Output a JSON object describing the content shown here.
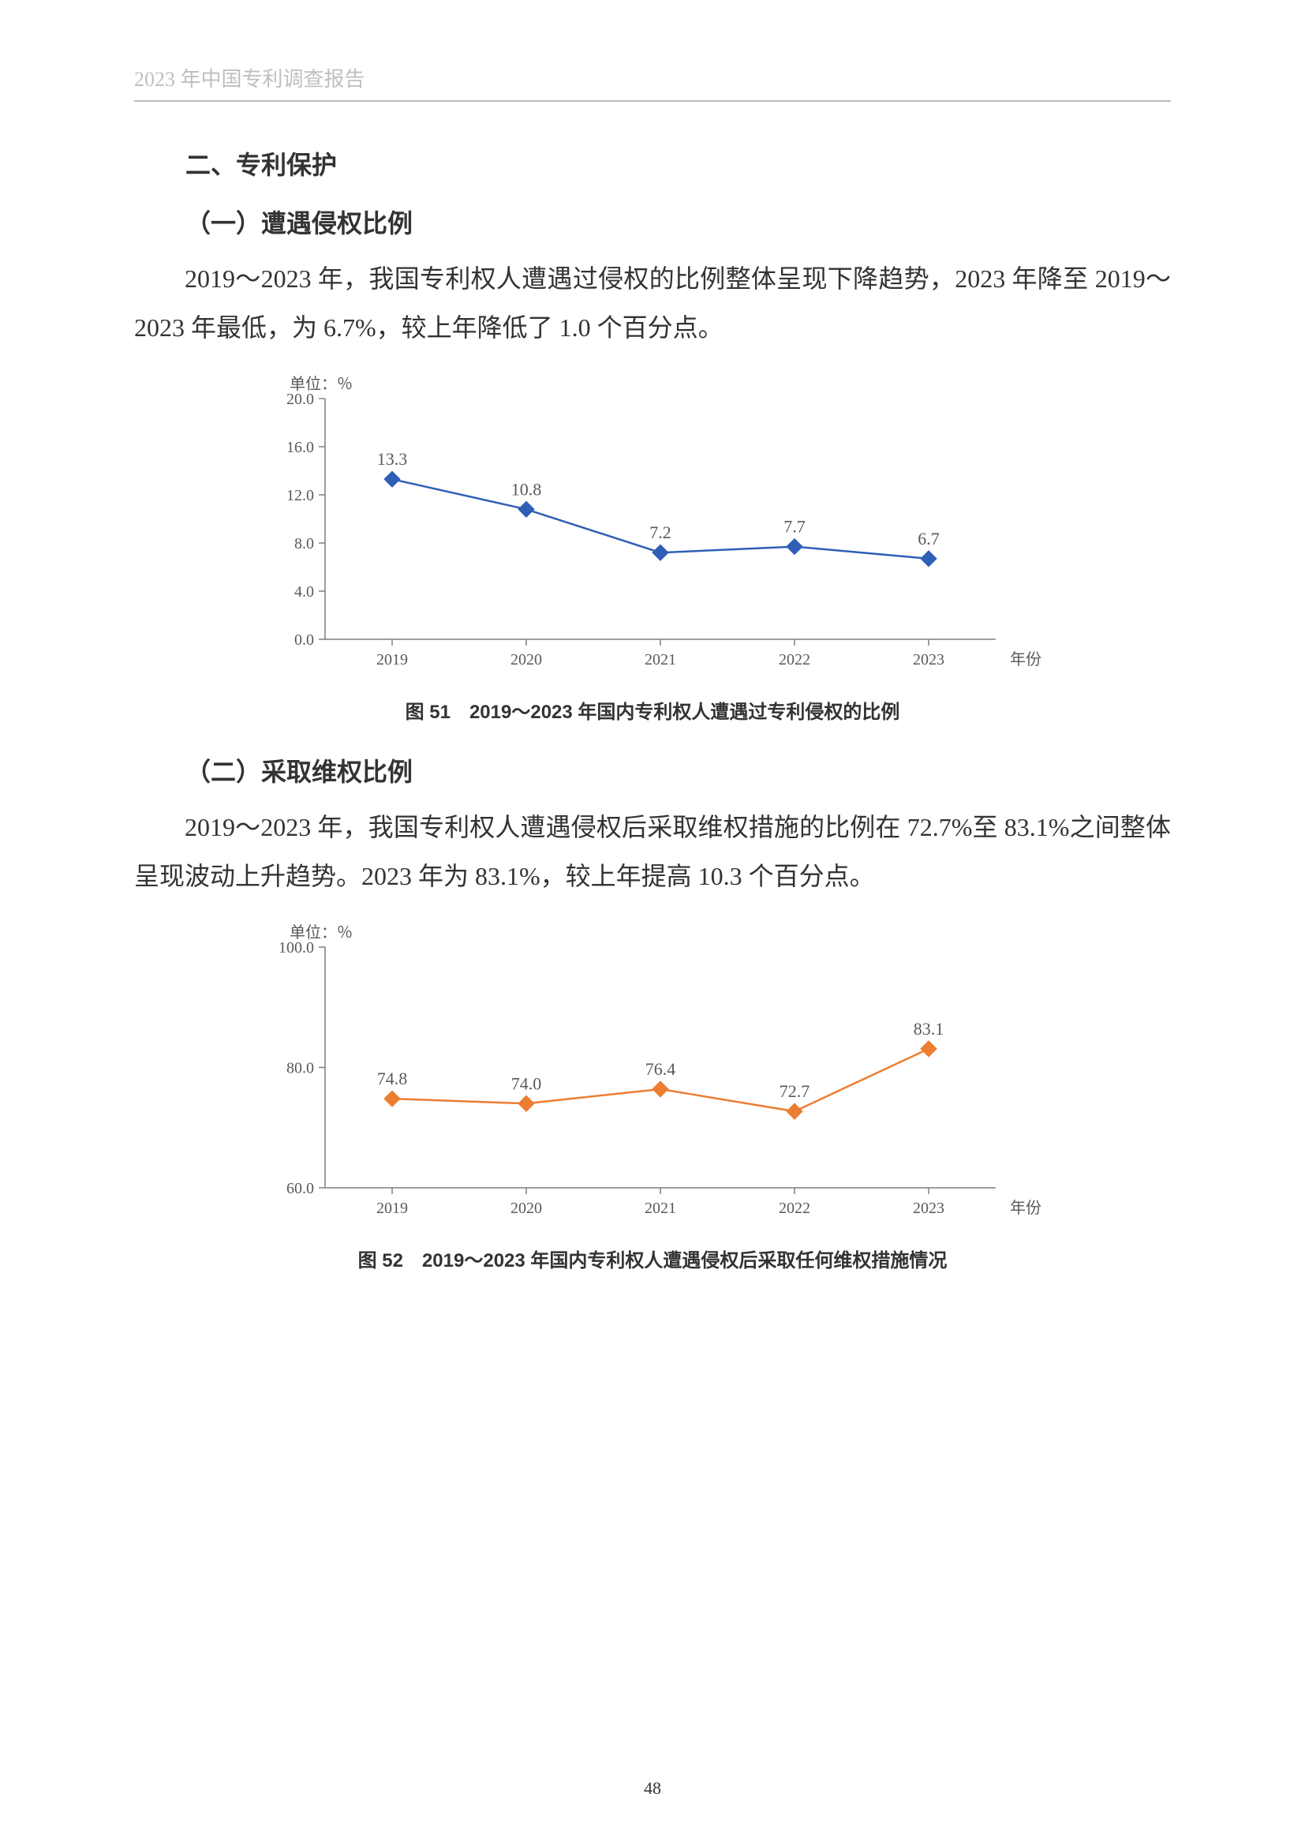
{
  "header": {
    "title": "2023 年中国专利调查报告"
  },
  "section": {
    "heading": "二、专利保护"
  },
  "sub1": {
    "heading": "（一）遭遇侵权比例",
    "para": "2019～2023 年，我国专利权人遭遇过侵权的比例整体呈现下降趋势，2023 年降至 2019～2023 年最低，为 6.7%，较上年降低了 1.0 个百分点。"
  },
  "chart1": {
    "type": "line",
    "unit_label": "单位：％",
    "x_axis_label": "年份",
    "categories": [
      "2019",
      "2020",
      "2021",
      "2022",
      "2023"
    ],
    "values": [
      13.3,
      10.8,
      7.2,
      7.7,
      6.7
    ],
    "value_labels": [
      "13.3",
      "10.8",
      "7.2",
      "7.7",
      "6.7"
    ],
    "yticks": [
      0.0,
      4.0,
      8.0,
      12.0,
      16.0,
      20.0
    ],
    "ytick_labels": [
      "0.0",
      "4.0",
      "8.0",
      "12.0",
      "16.0",
      "20.0"
    ],
    "ylim": [
      0,
      20
    ],
    "line_color": "#2f5fb5",
    "marker_color": "#2f5fb5",
    "marker_shape": "diamond",
    "marker_size": 10,
    "line_width": 2.5,
    "axis_color": "#7f7f7f",
    "text_color": "#595959",
    "font_size_ticks": 20,
    "font_size_values": 22,
    "background_color": "#ffffff",
    "caption": "图 51　2019～2023 年国内专利权人遭遇过专利侵权的比例"
  },
  "sub2": {
    "heading": "（二）采取维权比例",
    "para": "2019～2023 年，我国专利权人遭遇侵权后采取维权措施的比例在 72.7%至 83.1%之间整体呈现波动上升趋势。2023 年为 83.1%，较上年提高 10.3 个百分点。"
  },
  "chart2": {
    "type": "line",
    "unit_label": "单位：％",
    "x_axis_label": "年份",
    "categories": [
      "2019",
      "2020",
      "2021",
      "2022",
      "2023"
    ],
    "values": [
      74.8,
      74.0,
      76.4,
      72.7,
      83.1
    ],
    "value_labels": [
      "74.8",
      "74.0",
      "76.4",
      "72.7",
      "83.1"
    ],
    "yticks": [
      60.0,
      80.0,
      100.0
    ],
    "ytick_labels": [
      "60.0",
      "80.0",
      "100.0"
    ],
    "ylim": [
      60,
      100
    ],
    "line_color": "#ed7d31",
    "marker_color": "#ed7d31",
    "marker_shape": "diamond",
    "marker_size": 10,
    "line_width": 2.5,
    "axis_color": "#7f7f7f",
    "text_color": "#595959",
    "font_size_ticks": 20,
    "font_size_values": 22,
    "background_color": "#ffffff",
    "caption": "图 52　2019～2023 年国内专利权人遭遇侵权后采取任何维权措施情况"
  },
  "page_number": "48"
}
